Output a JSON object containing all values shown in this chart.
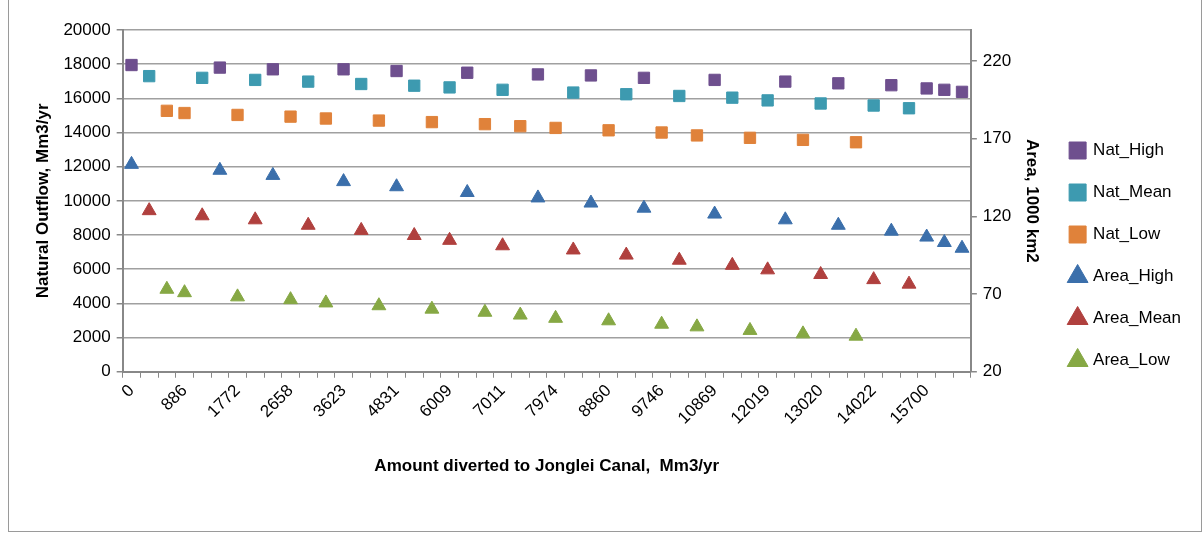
{
  "chart_data": {
    "type": "scatter",
    "xlabel": "Amount diverted to Jonglei Canal,  Mm3/yr",
    "ylabel": "Natural Outflow, Mm3/yr",
    "y2label": "Area, 1000 km2",
    "categories": [
      "0",
      null,
      null,
      "886",
      null,
      null,
      "1772",
      null,
      null,
      "2658",
      null,
      null,
      "3623",
      null,
      null,
      "4831",
      null,
      null,
      "6009",
      null,
      null,
      "7011",
      null,
      null,
      "7974",
      null,
      null,
      "8860",
      null,
      null,
      "9746",
      null,
      null,
      "10869",
      null,
      null,
      "12019",
      null,
      null,
      "13020",
      null,
      null,
      "14022",
      null,
      null,
      "15700",
      null,
      null
    ],
    "series": [
      {
        "name": "Nat_High",
        "color": "#6e4f8e",
        "marker": "square",
        "values": [
          17950,
          null,
          null,
          null,
          null,
          17800,
          null,
          null,
          17700,
          null,
          null,
          null,
          17700,
          null,
          null,
          17600,
          null,
          null,
          null,
          17500,
          null,
          null,
          null,
          17400,
          null,
          null,
          17340,
          null,
          null,
          17200,
          null,
          null,
          null,
          17080,
          null,
          null,
          null,
          16980,
          null,
          null,
          16880,
          null,
          null,
          16770,
          null,
          16580,
          16500,
          16380
        ]
      },
      {
        "name": "Nat_Mean",
        "color": "#3d9ab0",
        "marker": "square",
        "values": [
          null,
          17300,
          null,
          null,
          17200,
          null,
          null,
          17080,
          null,
          null,
          16980,
          null,
          null,
          16840,
          null,
          null,
          16740,
          null,
          16640,
          null,
          null,
          16500,
          null,
          null,
          null,
          16340,
          null,
          null,
          16240,
          null,
          null,
          16140,
          null,
          null,
          16040,
          null,
          15880,
          null,
          null,
          15700,
          null,
          null,
          15580,
          null,
          15420,
          null,
          null,
          null
        ]
      },
      {
        "name": "Nat_Low",
        "color": "#e0823a",
        "marker": "square",
        "values": [
          null,
          null,
          15270,
          15140,
          null,
          null,
          15030,
          null,
          null,
          14930,
          null,
          14820,
          null,
          null,
          14700,
          null,
          null,
          14610,
          null,
          null,
          14490,
          null,
          14370,
          null,
          14270,
          null,
          null,
          14130,
          null,
          null,
          14000,
          null,
          13830,
          null,
          null,
          13690,
          null,
          null,
          13570,
          null,
          null,
          13430,
          null,
          null,
          null,
          null,
          null,
          null
        ]
      },
      {
        "name": "Area_High",
        "color": "#3b6fab",
        "marker": "triangle",
        "axis": "y2",
        "values": [
          153.5,
          null,
          null,
          null,
          null,
          149.7,
          null,
          null,
          146.4,
          null,
          null,
          null,
          142.4,
          null,
          null,
          139.1,
          null,
          null,
          null,
          135.4,
          null,
          null,
          null,
          131.9,
          null,
          null,
          128.6,
          null,
          null,
          125.3,
          null,
          null,
          null,
          121.5,
          null,
          null,
          null,
          117.8,
          null,
          null,
          114.3,
          null,
          null,
          110.5,
          null,
          106.7,
          103.2,
          99.5
        ]
      },
      {
        "name": "Area_Mean",
        "color": "#b0403e",
        "marker": "triangle",
        "axis": "y2",
        "values": [
          null,
          123.7,
          null,
          null,
          120.4,
          null,
          null,
          117.8,
          null,
          null,
          114.3,
          null,
          null,
          111,
          null,
          null,
          107.7,
          null,
          104.6,
          null,
          null,
          101.1,
          null,
          null,
          null,
          98.4,
          null,
          null,
          95.1,
          null,
          null,
          91.8,
          null,
          null,
          88.5,
          null,
          85.6,
          null,
          null,
          82.6,
          null,
          null,
          79.3,
          null,
          76.4,
          null,
          null,
          null
        ]
      },
      {
        "name": "Area_Low",
        "color": "#86a844",
        "marker": "triangle",
        "axis": "y2",
        "values": [
          null,
          null,
          73.1,
          70.9,
          null,
          null,
          68.2,
          null,
          null,
          66.4,
          null,
          64.3,
          null,
          null,
          62.5,
          null,
          null,
          60.3,
          null,
          null,
          58.3,
          null,
          56.5,
          null,
          54.4,
          null,
          null,
          52.8,
          null,
          null,
          50.6,
          null,
          48.9,
          null,
          null,
          46.6,
          null,
          null,
          44.4,
          null,
          null,
          42.9,
          null,
          null,
          null,
          null,
          null,
          null
        ]
      }
    ],
    "ylim": [
      0,
      20000
    ],
    "yticks": [
      0,
      2000,
      4000,
      6000,
      8000,
      10000,
      12000,
      14000,
      16000,
      18000,
      20000
    ],
    "y2lim": [
      20,
      240
    ],
    "y2ticks": [
      20,
      70,
      120,
      170,
      220
    ],
    "grid": "y",
    "legend": "right"
  }
}
